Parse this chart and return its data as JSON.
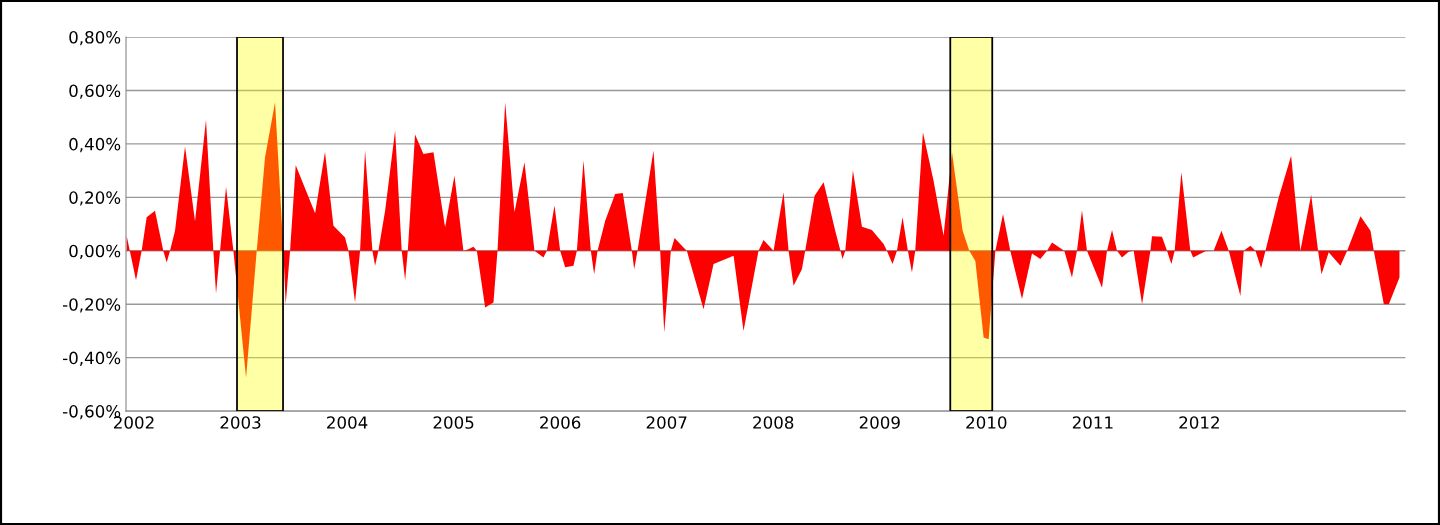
{
  "chart_data": {
    "type": "area",
    "x": [
      2001.931,
      2002.019,
      2002.072,
      2002.119,
      2002.197,
      2002.275,
      2002.307,
      2002.338,
      2002.385,
      2002.479,
      2002.573,
      2002.676,
      2002.745,
      2002.77,
      2002.808,
      2002.864,
      2002.933,
      2003.052,
      2003.152,
      2003.23,
      2003.324,
      2003.402,
      2003.424,
      2003.465,
      2003.518,
      2003.7,
      2003.793,
      2003.872,
      2003.981,
      2004.013,
      2004.075,
      2004.122,
      2004.169,
      2004.238,
      2004.263,
      2004.294,
      2004.357,
      2004.451,
      2004.513,
      2004.545,
      2004.57,
      2004.638,
      2004.717,
      2004.811,
      2004.92,
      2005.008,
      2005.092,
      2005.139,
      2005.186,
      2005.218,
      2005.296,
      2005.374,
      2005.412,
      2005.484,
      2005.571,
      2005.665,
      2005.759,
      2005.843,
      2005.875,
      2005.947,
      2006.0,
      2006.047,
      2006.125,
      2006.157,
      2006.219,
      2006.288,
      2006.319,
      2006.351,
      2006.423,
      2006.516,
      2006.588,
      2006.673,
      2006.695,
      2006.726,
      2006.876,
      2006.939,
      2006.977,
      2007.039,
      2007.074,
      2007.158,
      2007.189,
      2007.346,
      2007.44,
      2007.628,
      2007.721,
      2007.862,
      2007.909,
      2008.003,
      2008.097,
      2008.144,
      2008.191,
      2008.269,
      2008.3,
      2008.388,
      2008.473,
      2008.582,
      2008.651,
      2008.676,
      2008.748,
      2008.833,
      2008.926,
      2009.036,
      2009.067,
      2009.12,
      2009.161,
      2009.214,
      2009.264,
      2009.302,
      2009.333,
      2009.405,
      2009.505,
      2009.599,
      2009.678,
      2009.778,
      2009.84,
      2009.897,
      2009.975,
      2010.022,
      2010.085,
      2010.157,
      2010.225,
      2010.335,
      2010.429,
      2010.507,
      2010.57,
      2010.617,
      2010.71,
      2010.732,
      2010.804,
      2010.851,
      2010.898,
      2010.945,
      2011.086,
      2011.133,
      2011.18,
      2011.227,
      2011.274,
      2011.336,
      2011.383,
      2011.462,
      2011.54,
      2011.555,
      2011.649,
      2011.696,
      2011.737,
      2011.768,
      2011.831,
      2011.915,
      2011.941,
      2012.056,
      2012.134,
      2012.207,
      2012.276,
      2012.385,
      2012.416,
      2012.479,
      2012.526,
      2012.579,
      2012.62,
      2012.745,
      2012.861,
      2012.948,
      2013.049,
      2013.114,
      2013.146,
      2013.214,
      2013.324,
      2013.387,
      2013.512,
      2013.606,
      2013.637,
      2013.731,
      2013.778,
      2013.878
    ],
    "series": [
      {
        "color": "#ff0000",
        "values": [
          0.056,
          -0.11,
          0,
          0.125,
          0.15,
          0,
          -0.044,
          0,
          0.075,
          0.39,
          0.11,
          0.49,
          0,
          -0.16,
          0,
          0.24,
          0,
          -0.475,
          0,
          0.35,
          0.556,
          0,
          -0.2,
          0,
          0.32,
          0.14,
          0.37,
          0.094,
          0.05,
          0,
          -0.194,
          0,
          0.375,
          0,
          -0.056,
          0,
          0.15,
          0.45,
          0,
          -0.11,
          0,
          0.435,
          0.362,
          0.369,
          0.088,
          0.281,
          0,
          0.006,
          0.015,
          0,
          -0.212,
          -0.194,
          0,
          0.556,
          0.144,
          0.331,
          0,
          -0.025,
          0,
          0.169,
          0,
          -0.062,
          -0.056,
          0,
          0.338,
          0,
          -0.088,
          0,
          0.112,
          0.212,
          0.216,
          0,
          -0.069,
          0,
          0.375,
          0,
          -0.306,
          0,
          0.048,
          0.012,
          0,
          -0.219,
          -0.05,
          -0.019,
          -0.3,
          0,
          0.04,
          0,
          0.219,
          0,
          -0.131,
          -0.069,
          0,
          0.206,
          0.256,
          0.075,
          -0.031,
          0,
          0.3,
          0.09,
          0.078,
          0.025,
          0,
          -0.05,
          0,
          0.125,
          0,
          -0.081,
          0,
          0.444,
          0.262,
          0.056,
          0.369,
          0.075,
          0,
          -0.038,
          -0.325,
          -0.331,
          0,
          0.138,
          0,
          -0.181,
          -0.01,
          -0.031,
          0,
          0.031,
          0.006,
          0,
          -0.1,
          0,
          0.152,
          0,
          -0.138,
          0,
          0.078,
          0,
          -0.025,
          -0.004,
          0,
          -0.2,
          0,
          0.054,
          0.052,
          0,
          -0.05,
          0,
          0.294,
          0,
          -0.025,
          -0.002,
          0,
          0.075,
          0,
          -0.169,
          0,
          0.019,
          0,
          -0.065,
          0,
          0.2,
          0.356,
          0,
          0.21,
          0,
          -0.088,
          -0.006,
          -0.056,
          0,
          0.129,
          0.075,
          0,
          -0.2,
          -0.2,
          -0.1
        ]
      }
    ],
    "xlim": [
      2001.925,
      2013.934
    ],
    "xticks": [
      2002,
      2003,
      2004,
      2005,
      2006,
      2007,
      2008,
      2009,
      2010,
      2011,
      2012
    ],
    "ylim": [
      -0.6,
      0.8
    ],
    "yticks": [
      {
        "value": -0.6,
        "label": "-0,60%"
      },
      {
        "value": -0.4,
        "label": "-0,40%"
      },
      {
        "value": -0.2,
        "label": "-0,20%"
      },
      {
        "value": 0,
        "label": "0,00%"
      },
      {
        "value": 0.2,
        "label": "0,20%"
      },
      {
        "value": 0.4,
        "label": "0,40%"
      },
      {
        "value": 0.6,
        "label": "0,60%"
      },
      {
        "value": 0.8,
        "label": "0,80%"
      }
    ],
    "grid": "y",
    "bands": [
      {
        "axis": "x",
        "from": 2002.967,
        "to": 2003.399,
        "color": "#ffff00"
      },
      {
        "axis": "x",
        "from": 2009.662,
        "to": 2010.056,
        "color": "#ffff00"
      }
    ]
  }
}
